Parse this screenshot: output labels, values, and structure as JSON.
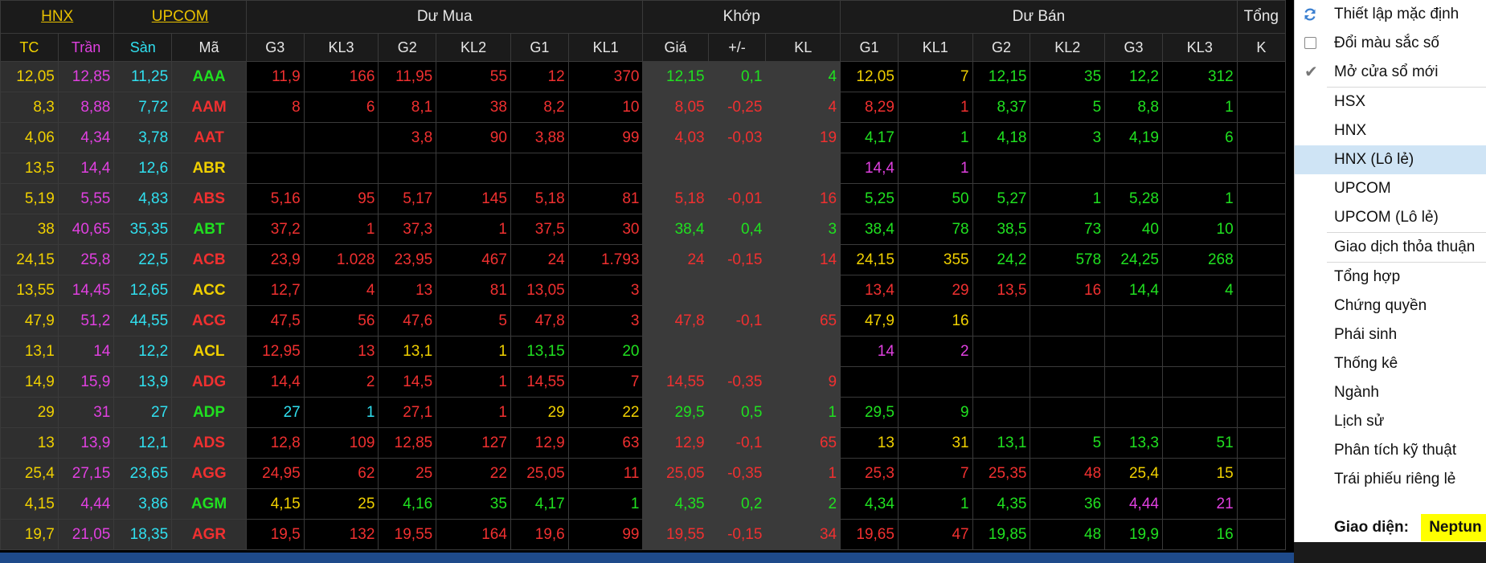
{
  "header": {
    "exchange_links": [
      "HNX",
      "UPCOM"
    ],
    "groups": [
      "Dư Mua",
      "Khớp",
      "Dư Bán",
      "Tổng"
    ],
    "columns": [
      "TC",
      "Trần",
      "Sàn",
      "Mã",
      "G3",
      "KL3",
      "G2",
      "KL2",
      "G1",
      "KL1",
      "Giá",
      "+/-",
      "KL",
      "G1",
      "KL1",
      "G2",
      "KL2",
      "G3",
      "KL3",
      "K"
    ]
  },
  "colors": {
    "ref": "#f0d000",
    "ceil": "#e040e0",
    "floor": "#30e0f0",
    "up": "#20e020",
    "down": "#f03030",
    "yellow": "#f0d000",
    "magenta": "#e040e0",
    "cyan": "#30e0f0"
  },
  "rows": [
    {
      "tc": "12,05",
      "tran": "12,85",
      "san": "11,25",
      "sym": "AAA",
      "sc": "up",
      "b3": [
        "11,9",
        "down"
      ],
      "bk3": [
        "166",
        "down"
      ],
      "b2": [
        "11,95",
        "down"
      ],
      "bk2": [
        "55",
        "down"
      ],
      "b1": [
        "12",
        "down"
      ],
      "bk1": [
        "370",
        "down"
      ],
      "p": [
        "12,15",
        "up"
      ],
      "ch": [
        "0,1",
        "up"
      ],
      "kl": [
        "4",
        "up"
      ],
      "s1": [
        "12,05",
        "yellow"
      ],
      "sk1": [
        "7",
        "yellow"
      ],
      "s2": [
        "12,15",
        "up"
      ],
      "sk2": [
        "35",
        "up"
      ],
      "s3": [
        "12,2",
        "up"
      ],
      "sk3": [
        "312",
        "up"
      ]
    },
    {
      "tc": "8,3",
      "tran": "8,88",
      "san": "7,72",
      "sym": "AAM",
      "sc": "down",
      "b3": [
        "8",
        "down"
      ],
      "bk3": [
        "6",
        "down"
      ],
      "b2": [
        "8,1",
        "down"
      ],
      "bk2": [
        "38",
        "down"
      ],
      "b1": [
        "8,2",
        "down"
      ],
      "bk1": [
        "10",
        "down"
      ],
      "p": [
        "8,05",
        "down"
      ],
      "ch": [
        "-0,25",
        "down"
      ],
      "kl": [
        "4",
        "down"
      ],
      "s1": [
        "8,29",
        "down"
      ],
      "sk1": [
        "1",
        "down"
      ],
      "s2": [
        "8,37",
        "up"
      ],
      "sk2": [
        "5",
        "up"
      ],
      "s3": [
        "8,8",
        "up"
      ],
      "sk3": [
        "1",
        "up"
      ]
    },
    {
      "tc": "4,06",
      "tran": "4,34",
      "san": "3,78",
      "sym": "AAT",
      "sc": "down",
      "b3": [
        "",
        ""
      ],
      "bk3": [
        "",
        ""
      ],
      "b2": [
        "3,8",
        "down"
      ],
      "bk2": [
        "90",
        "down"
      ],
      "b1": [
        "3,88",
        "down"
      ],
      "bk1": [
        "99",
        "down"
      ],
      "p": [
        "4,03",
        "down"
      ],
      "ch": [
        "-0,03",
        "down"
      ],
      "kl": [
        "19",
        "down"
      ],
      "s1": [
        "4,17",
        "up"
      ],
      "sk1": [
        "1",
        "up"
      ],
      "s2": [
        "4,18",
        "up"
      ],
      "sk2": [
        "3",
        "up"
      ],
      "s3": [
        "4,19",
        "up"
      ],
      "sk3": [
        "6",
        "up"
      ]
    },
    {
      "tc": "13,5",
      "tran": "14,4",
      "san": "12,6",
      "sym": "ABR",
      "sc": "yellow",
      "b3": [
        "",
        ""
      ],
      "bk3": [
        "",
        ""
      ],
      "b2": [
        "",
        ""
      ],
      "bk2": [
        "",
        ""
      ],
      "b1": [
        "",
        ""
      ],
      "bk1": [
        "",
        ""
      ],
      "p": [
        "",
        ""
      ],
      "ch": [
        "",
        ""
      ],
      "kl": [
        "",
        ""
      ],
      "s1": [
        "14,4",
        "magenta"
      ],
      "sk1": [
        "1",
        "magenta"
      ],
      "s2": [
        "",
        ""
      ],
      "sk2": [
        "",
        ""
      ],
      "s3": [
        "",
        ""
      ],
      "sk3": [
        "",
        ""
      ]
    },
    {
      "tc": "5,19",
      "tran": "5,55",
      "san": "4,83",
      "sym": "ABS",
      "sc": "down",
      "b3": [
        "5,16",
        "down"
      ],
      "bk3": [
        "95",
        "down"
      ],
      "b2": [
        "5,17",
        "down"
      ],
      "bk2": [
        "145",
        "down"
      ],
      "b1": [
        "5,18",
        "down"
      ],
      "bk1": [
        "81",
        "down"
      ],
      "p": [
        "5,18",
        "down"
      ],
      "ch": [
        "-0,01",
        "down"
      ],
      "kl": [
        "16",
        "down"
      ],
      "s1": [
        "5,25",
        "up"
      ],
      "sk1": [
        "50",
        "up"
      ],
      "s2": [
        "5,27",
        "up"
      ],
      "sk2": [
        "1",
        "up"
      ],
      "s3": [
        "5,28",
        "up"
      ],
      "sk3": [
        "1",
        "up"
      ]
    },
    {
      "tc": "38",
      "tran": "40,65",
      "san": "35,35",
      "sym": "ABT",
      "sc": "up",
      "b3": [
        "37,2",
        "down"
      ],
      "bk3": [
        "1",
        "down"
      ],
      "b2": [
        "37,3",
        "down"
      ],
      "bk2": [
        "1",
        "down"
      ],
      "b1": [
        "37,5",
        "down"
      ],
      "bk1": [
        "30",
        "down"
      ],
      "p": [
        "38,4",
        "up"
      ],
      "ch": [
        "0,4",
        "up"
      ],
      "kl": [
        "3",
        "up"
      ],
      "s1": [
        "38,4",
        "up"
      ],
      "sk1": [
        "78",
        "up"
      ],
      "s2": [
        "38,5",
        "up"
      ],
      "sk2": [
        "73",
        "up"
      ],
      "s3": [
        "40",
        "up"
      ],
      "sk3": [
        "10",
        "up"
      ]
    },
    {
      "tc": "24,15",
      "tran": "25,8",
      "san": "22,5",
      "sym": "ACB",
      "sc": "down",
      "b3": [
        "23,9",
        "down"
      ],
      "bk3": [
        "1.028",
        "down"
      ],
      "b2": [
        "23,95",
        "down"
      ],
      "bk2": [
        "467",
        "down"
      ],
      "b1": [
        "24",
        "down"
      ],
      "bk1": [
        "1.793",
        "down"
      ],
      "p": [
        "24",
        "down"
      ],
      "ch": [
        "-0,15",
        "down"
      ],
      "kl": [
        "14",
        "down"
      ],
      "s1": [
        "24,15",
        "yellow"
      ],
      "sk1": [
        "355",
        "yellow"
      ],
      "s2": [
        "24,2",
        "up"
      ],
      "sk2": [
        "578",
        "up"
      ],
      "s3": [
        "24,25",
        "up"
      ],
      "sk3": [
        "268",
        "up"
      ]
    },
    {
      "tc": "13,55",
      "tran": "14,45",
      "san": "12,65",
      "sym": "ACC",
      "sc": "yellow",
      "b3": [
        "12,7",
        "down"
      ],
      "bk3": [
        "4",
        "down"
      ],
      "b2": [
        "13",
        "down"
      ],
      "bk2": [
        "81",
        "down"
      ],
      "b1": [
        "13,05",
        "down"
      ],
      "bk1": [
        "3",
        "down"
      ],
      "p": [
        "",
        ""
      ],
      "ch": [
        "",
        ""
      ],
      "kl": [
        "",
        ""
      ],
      "s1": [
        "13,4",
        "down"
      ],
      "sk1": [
        "29",
        "down"
      ],
      "s2": [
        "13,5",
        "down"
      ],
      "sk2": [
        "16",
        "down"
      ],
      "s3": [
        "14,4",
        "up"
      ],
      "sk3": [
        "4",
        "up"
      ]
    },
    {
      "tc": "47,9",
      "tran": "51,2",
      "san": "44,55",
      "sym": "ACG",
      "sc": "down",
      "b3": [
        "47,5",
        "down"
      ],
      "bk3": [
        "56",
        "down"
      ],
      "b2": [
        "47,6",
        "down"
      ],
      "bk2": [
        "5",
        "down"
      ],
      "b1": [
        "47,8",
        "down"
      ],
      "bk1": [
        "3",
        "down"
      ],
      "p": [
        "47,8",
        "down"
      ],
      "ch": [
        "-0,1",
        "down"
      ],
      "kl": [
        "65",
        "down"
      ],
      "s1": [
        "47,9",
        "yellow"
      ],
      "sk1": [
        "16",
        "yellow"
      ],
      "s2": [
        "",
        ""
      ],
      "sk2": [
        "",
        ""
      ],
      "s3": [
        "",
        ""
      ],
      "sk3": [
        "",
        ""
      ]
    },
    {
      "tc": "13,1",
      "tran": "14",
      "san": "12,2",
      "sym": "ACL",
      "sc": "yellow",
      "b3": [
        "12,95",
        "down"
      ],
      "bk3": [
        "13",
        "down"
      ],
      "b2": [
        "13,1",
        "yellow"
      ],
      "bk2": [
        "1",
        "yellow"
      ],
      "b1": [
        "13,15",
        "up"
      ],
      "bk1": [
        "20",
        "up"
      ],
      "p": [
        "",
        ""
      ],
      "ch": [
        "",
        ""
      ],
      "kl": [
        "",
        ""
      ],
      "s1": [
        "14",
        "magenta"
      ],
      "sk1": [
        "2",
        "magenta"
      ],
      "s2": [
        "",
        ""
      ],
      "sk2": [
        "",
        ""
      ],
      "s3": [
        "",
        ""
      ],
      "sk3": [
        "",
        ""
      ]
    },
    {
      "tc": "14,9",
      "tran": "15,9",
      "san": "13,9",
      "sym": "ADG",
      "sc": "down",
      "b3": [
        "14,4",
        "down"
      ],
      "bk3": [
        "2",
        "down"
      ],
      "b2": [
        "14,5",
        "down"
      ],
      "bk2": [
        "1",
        "down"
      ],
      "b1": [
        "14,55",
        "down"
      ],
      "bk1": [
        "7",
        "down"
      ],
      "p": [
        "14,55",
        "down"
      ],
      "ch": [
        "-0,35",
        "down"
      ],
      "kl": [
        "9",
        "down"
      ],
      "s1": [
        "",
        ""
      ],
      "sk1": [
        "",
        ""
      ],
      "s2": [
        "",
        ""
      ],
      "sk2": [
        "",
        ""
      ],
      "s3": [
        "",
        ""
      ],
      "sk3": [
        "",
        ""
      ]
    },
    {
      "tc": "29",
      "tran": "31",
      "san": "27",
      "sym": "ADP",
      "sc": "up",
      "b3": [
        "27",
        "cyan"
      ],
      "bk3": [
        "1",
        "cyan"
      ],
      "b2": [
        "27,1",
        "down"
      ],
      "bk2": [
        "1",
        "down"
      ],
      "b1": [
        "29",
        "yellow"
      ],
      "bk1": [
        "22",
        "yellow"
      ],
      "p": [
        "29,5",
        "up"
      ],
      "ch": [
        "0,5",
        "up"
      ],
      "kl": [
        "1",
        "up"
      ],
      "s1": [
        "29,5",
        "up"
      ],
      "sk1": [
        "9",
        "up"
      ],
      "s2": [
        "",
        ""
      ],
      "sk2": [
        "",
        ""
      ],
      "s3": [
        "",
        ""
      ],
      "sk3": [
        "",
        ""
      ]
    },
    {
      "tc": "13",
      "tran": "13,9",
      "san": "12,1",
      "sym": "ADS",
      "sc": "down",
      "b3": [
        "12,8",
        "down"
      ],
      "bk3": [
        "109",
        "down"
      ],
      "b2": [
        "12,85",
        "down"
      ],
      "bk2": [
        "127",
        "down"
      ],
      "b1": [
        "12,9",
        "down"
      ],
      "bk1": [
        "63",
        "down"
      ],
      "p": [
        "12,9",
        "down"
      ],
      "ch": [
        "-0,1",
        "down"
      ],
      "kl": [
        "65",
        "down"
      ],
      "s1": [
        "13",
        "yellow"
      ],
      "sk1": [
        "31",
        "yellow"
      ],
      "s2": [
        "13,1",
        "up"
      ],
      "sk2": [
        "5",
        "up"
      ],
      "s3": [
        "13,3",
        "up"
      ],
      "sk3": [
        "51",
        "up"
      ]
    },
    {
      "tc": "25,4",
      "tran": "27,15",
      "san": "23,65",
      "sym": "AGG",
      "sc": "down",
      "b3": [
        "24,95",
        "down"
      ],
      "bk3": [
        "62",
        "down"
      ],
      "b2": [
        "25",
        "down"
      ],
      "bk2": [
        "22",
        "down"
      ],
      "b1": [
        "25,05",
        "down"
      ],
      "bk1": [
        "11",
        "down"
      ],
      "p": [
        "25,05",
        "down"
      ],
      "ch": [
        "-0,35",
        "down"
      ],
      "kl": [
        "1",
        "down"
      ],
      "s1": [
        "25,3",
        "down"
      ],
      "sk1": [
        "7",
        "down"
      ],
      "s2": [
        "25,35",
        "down"
      ],
      "sk2": [
        "48",
        "down"
      ],
      "s3": [
        "25,4",
        "yellow"
      ],
      "sk3": [
        "15",
        "yellow"
      ]
    },
    {
      "tc": "4,15",
      "tran": "4,44",
      "san": "3,86",
      "sym": "AGM",
      "sc": "up",
      "b3": [
        "4,15",
        "yellow"
      ],
      "bk3": [
        "25",
        "yellow"
      ],
      "b2": [
        "4,16",
        "up"
      ],
      "bk2": [
        "35",
        "up"
      ],
      "b1": [
        "4,17",
        "up"
      ],
      "bk1": [
        "1",
        "up"
      ],
      "p": [
        "4,35",
        "up"
      ],
      "ch": [
        "0,2",
        "up"
      ],
      "kl": [
        "2",
        "up"
      ],
      "s1": [
        "4,34",
        "up"
      ],
      "sk1": [
        "1",
        "up"
      ],
      "s2": [
        "4,35",
        "up"
      ],
      "sk2": [
        "36",
        "up"
      ],
      "s3": [
        "4,44",
        "magenta"
      ],
      "sk3": [
        "21",
        "magenta"
      ]
    },
    {
      "tc": "19,7",
      "tran": "21,05",
      "san": "18,35",
      "sym": "AGR",
      "sc": "down",
      "b3": [
        "19,5",
        "down"
      ],
      "bk3": [
        "132",
        "down"
      ],
      "b2": [
        "19,55",
        "down"
      ],
      "bk2": [
        "164",
        "down"
      ],
      "b1": [
        "19,6",
        "down"
      ],
      "bk1": [
        "99",
        "down"
      ],
      "p": [
        "19,55",
        "down"
      ],
      "ch": [
        "-0,15",
        "down"
      ],
      "kl": [
        "34",
        "down"
      ],
      "s1": [
        "19,65",
        "down"
      ],
      "sk1": [
        "47",
        "down"
      ],
      "s2": [
        "19,85",
        "up"
      ],
      "sk2": [
        "48",
        "up"
      ],
      "s3": [
        "19,9",
        "up"
      ],
      "sk3": [
        "16",
        "up"
      ]
    }
  ],
  "menu": {
    "items": [
      {
        "label": "Thiết lập mặc định",
        "type": "refresh"
      },
      {
        "label": "Đổi màu sắc số",
        "type": "checkbox",
        "checked": false
      },
      {
        "label": "Mở cửa sổ mới",
        "type": "checkbox",
        "checked": true
      },
      {
        "sep": true
      },
      {
        "label": "HSX"
      },
      {
        "label": "HNX"
      },
      {
        "label": "HNX (Lô lẻ)",
        "highlight": true
      },
      {
        "label": "UPCOM"
      },
      {
        "label": "UPCOM (Lô lẻ)"
      },
      {
        "sep": true
      },
      {
        "label": "Giao dịch thỏa thuận"
      },
      {
        "sep": true
      },
      {
        "label": "Tổng hợp"
      },
      {
        "label": "Chứng quyền"
      },
      {
        "label": "Phái sinh"
      },
      {
        "label": "Thống kê"
      },
      {
        "label": "Ngành"
      },
      {
        "label": "Lịch sử"
      },
      {
        "label": "Phân tích kỹ thuật"
      },
      {
        "label": "Trái phiếu riêng lẻ"
      }
    ],
    "interface_label": "Giao diện:",
    "interface_value": "Neptun"
  }
}
